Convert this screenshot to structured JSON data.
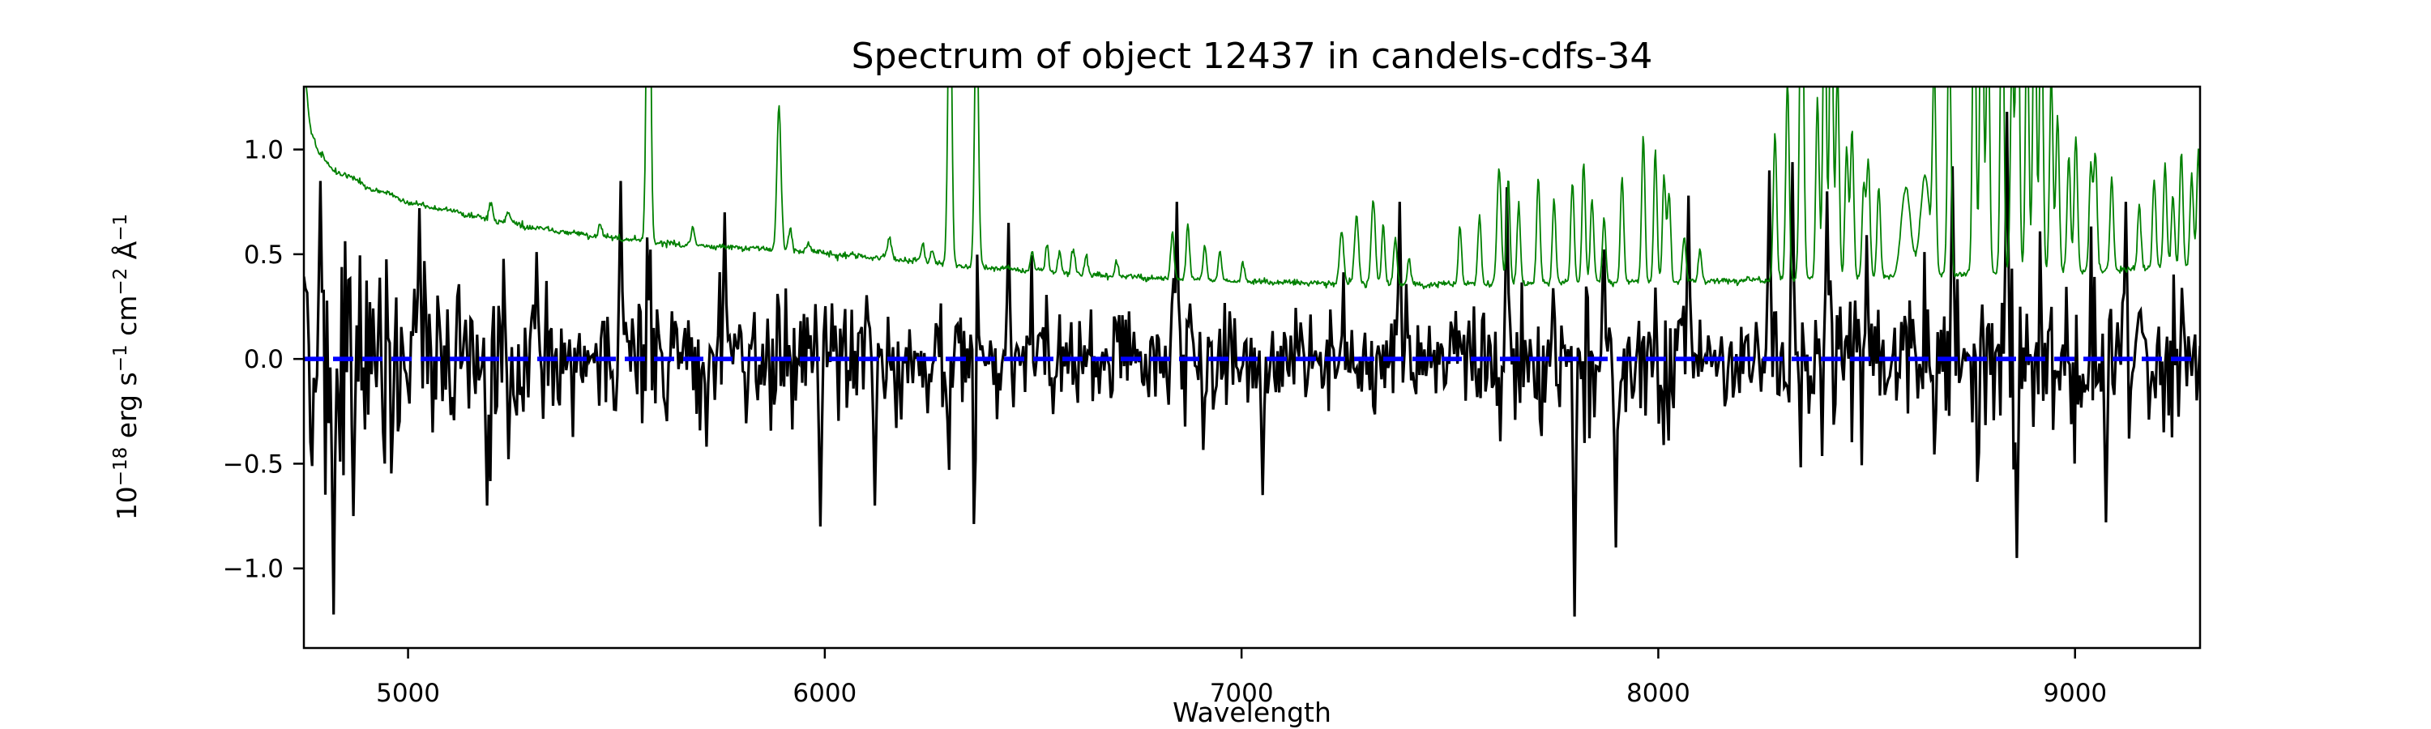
{
  "figure": {
    "title": "Spectrum of object 12437 in candels-cdfs-34",
    "xlabel": "Wavelength",
    "ylabel_plain": "10⁻¹⁸ erg s⁻¹ cm⁻² Å⁻¹",
    "ylabel_parts": [
      {
        "text": "10",
        "sup": false
      },
      {
        "text": "−18",
        "sup": true
      },
      {
        "text": " erg s",
        "sup": false
      },
      {
        "text": "−1",
        "sup": true
      },
      {
        "text": " cm",
        "sup": false
      },
      {
        "text": "−2",
        "sup": true
      },
      {
        "text": " Å",
        "sup": false
      },
      {
        "text": "−1",
        "sup": true
      }
    ],
    "background": "#ffffff",
    "axes_color": "#000000"
  },
  "chart_data": {
    "type": "line",
    "title": "Spectrum of object 12437 in candels-cdfs-34",
    "xlabel": "Wavelength",
    "ylabel": "10^-18 erg s^-1 cm^-2 A^-1",
    "xlim": [
      4750,
      9300
    ],
    "ylim": [
      -1.38,
      1.3
    ],
    "xticks": [
      5000,
      6000,
      7000,
      8000,
      9000
    ],
    "yticks": [
      -1.0,
      -0.5,
      0.0,
      0.5,
      1.0
    ],
    "grid": false,
    "legend": false,
    "series": [
      {
        "name": "observed-flux",
        "description": "Noisy extracted object spectrum oscillating about zero; noise amplitude tracks the sky brightness. Values in 1e-18 erg/s/cm2/A.",
        "color": "#000000",
        "linewidth": 3.2,
        "n_points": 1150,
        "seed": 12437,
        "noise_sigma_base": 0.095,
        "noise_sky_coupling": 0.3,
        "noise_sigma_min": 0.09,
        "noise_sigma_max": 0.34,
        "features": [
          [
            4790,
            0.85
          ],
          [
            4822,
            -1.22
          ],
          [
            4870,
            -0.75
          ],
          [
            5027,
            0.72
          ],
          [
            5190,
            -0.7
          ],
          [
            5509,
            0.85
          ],
          [
            5760,
            0.7
          ],
          [
            5990,
            -0.8
          ],
          [
            6120,
            -0.7
          ],
          [
            6440,
            0.65
          ],
          [
            6846,
            0.75
          ],
          [
            7050,
            -0.65
          ],
          [
            7378,
            0.75
          ],
          [
            7638,
            0.82
          ],
          [
            7800,
            -1.23
          ],
          [
            7900,
            -0.9
          ],
          [
            8071,
            0.78
          ],
          [
            8265,
            0.9
          ],
          [
            8322,
            0.94
          ],
          [
            8404,
            0.8
          ],
          [
            8707,
            0.92
          ],
          [
            8836,
            1.18
          ],
          [
            8861,
            -0.95
          ],
          [
            9073,
            -0.78
          ],
          [
            9121,
            0.75
          ]
        ]
      },
      {
        "name": "sky-noise-spectrum",
        "description": "Green noise/sky spectrum: smooth continuum declining from ~1.4 at 4750A to ~0.35 at 7400A then slowly rising, plus airglow emission lines (several clipped at the axes top).",
        "color": "#008000",
        "linewidth": 1.8,
        "n_points": 2275,
        "seed": 77,
        "continuum_anchors": [
          [
            4750,
            1.42
          ],
          [
            4765,
            1.1
          ],
          [
            4785,
            0.98
          ],
          [
            4820,
            0.9
          ],
          [
            4900,
            0.82
          ],
          [
            5000,
            0.74
          ],
          [
            5100,
            0.7
          ],
          [
            5200,
            0.66
          ],
          [
            5300,
            0.62
          ],
          [
            5400,
            0.595
          ],
          [
            5500,
            0.57
          ],
          [
            5600,
            0.55
          ],
          [
            5700,
            0.535
          ],
          [
            5800,
            0.525
          ],
          [
            5900,
            0.515
          ],
          [
            6000,
            0.5
          ],
          [
            6100,
            0.48
          ],
          [
            6200,
            0.465
          ],
          [
            6300,
            0.445
          ],
          [
            6400,
            0.43
          ],
          [
            6500,
            0.415
          ],
          [
            6600,
            0.4
          ],
          [
            6700,
            0.39
          ],
          [
            6800,
            0.38
          ],
          [
            6900,
            0.375
          ],
          [
            7000,
            0.365
          ],
          [
            7100,
            0.36
          ],
          [
            7200,
            0.355
          ],
          [
            7300,
            0.35
          ],
          [
            7400,
            0.35
          ],
          [
            7500,
            0.35
          ],
          [
            7600,
            0.355
          ],
          [
            7700,
            0.355
          ],
          [
            7800,
            0.36
          ],
          [
            7900,
            0.36
          ],
          [
            8000,
            0.36
          ],
          [
            8100,
            0.365
          ],
          [
            8200,
            0.37
          ],
          [
            8300,
            0.375
          ],
          [
            8400,
            0.38
          ],
          [
            8500,
            0.385
          ],
          [
            8600,
            0.39
          ],
          [
            8700,
            0.4
          ],
          [
            8800,
            0.405
          ],
          [
            8900,
            0.41
          ],
          [
            9000,
            0.415
          ],
          [
            9100,
            0.42
          ],
          [
            9200,
            0.425
          ],
          [
            9300,
            0.43
          ]
        ],
        "emission_lines": [
          [
            5199,
            0.09,
            4
          ],
          [
            5240,
            0.05,
            4
          ],
          [
            5461,
            0.06,
            4
          ],
          [
            5577,
            2.2,
            4.5
          ],
          [
            5683,
            0.08,
            4
          ],
          [
            5890,
            0.68,
            5
          ],
          [
            5917,
            0.1,
            4
          ],
          [
            5960,
            0.05,
            4
          ],
          [
            6155,
            0.1,
            5
          ],
          [
            6235,
            0.08,
            4
          ],
          [
            6257,
            0.07,
            4
          ],
          [
            6300,
            1.5,
            4.5
          ],
          [
            6364,
            1.3,
            4.5
          ],
          [
            6498,
            0.09,
            4
          ],
          [
            6533,
            0.13,
            4
          ],
          [
            6563,
            0.1,
            4
          ],
          [
            6596,
            0.12,
            4
          ],
          [
            6627,
            0.1,
            4
          ],
          [
            6700,
            0.07,
            4
          ],
          [
            6834,
            0.22,
            4
          ],
          [
            6871,
            0.26,
            4
          ],
          [
            6912,
            0.16,
            4
          ],
          [
            6948,
            0.13,
            4
          ],
          [
            7003,
            0.1,
            4
          ],
          [
            7240,
            0.26,
            5
          ],
          [
            7276,
            0.32,
            5
          ],
          [
            7316,
            0.4,
            5
          ],
          [
            7340,
            0.28,
            4
          ],
          [
            7369,
            0.22,
            4
          ],
          [
            7402,
            0.12,
            4
          ],
          [
            7524,
            0.28,
            4
          ],
          [
            7571,
            0.32,
            4
          ],
          [
            7618,
            0.55,
            5
          ],
          [
            7640,
            0.5,
            4
          ],
          [
            7665,
            0.38,
            4
          ],
          [
            7712,
            0.5,
            4
          ],
          [
            7750,
            0.4,
            4
          ],
          [
            7794,
            0.48,
            4
          ],
          [
            7821,
            0.58,
            4
          ],
          [
            7841,
            0.4,
            4
          ],
          [
            7870,
            0.3,
            4
          ],
          [
            7913,
            0.5,
            4
          ],
          [
            7964,
            0.7,
            4
          ],
          [
            7993,
            0.62,
            4
          ],
          [
            8014,
            0.5,
            4
          ],
          [
            8026,
            0.42,
            4
          ],
          [
            8062,
            0.22,
            4
          ],
          [
            8100,
            0.15,
            4
          ],
          [
            8280,
            0.7,
            4
          ],
          [
            8310,
            0.95,
            4
          ],
          [
            8344,
            1.8,
            4.5
          ],
          [
            8382,
            0.85,
            4
          ],
          [
            8399,
            1.5,
            4
          ],
          [
            8415,
            1.6,
            4
          ],
          [
            8430,
            1.0,
            4
          ],
          [
            8452,
            0.62,
            4
          ],
          [
            8465,
            0.7,
            4
          ],
          [
            8493,
            0.45,
            4
          ],
          [
            8504,
            0.55,
            4
          ],
          [
            8529,
            0.42,
            4
          ],
          [
            8594,
            0.42,
            11
          ],
          [
            8640,
            0.48,
            11
          ],
          [
            8662,
            0.95,
            4
          ],
          [
            8698,
            1.25,
            4
          ],
          [
            8758,
            1.55,
            4
          ],
          [
            8776,
            1.85,
            4
          ],
          [
            8791,
            1.3,
            4
          ],
          [
            8825,
            1.65,
            4
          ],
          [
            8849,
            1.05,
            4
          ],
          [
            8862,
            1.95,
            4
          ],
          [
            8885,
            1.25,
            4
          ],
          [
            8903,
            1.55,
            4
          ],
          [
            8919,
            1.45,
            4
          ],
          [
            8943,
            0.95,
            4
          ],
          [
            8958,
            0.75,
            4
          ],
          [
            8985,
            0.55,
            4
          ],
          [
            9002,
            0.65,
            4
          ],
          [
            9038,
            0.5,
            4
          ],
          [
            9049,
            0.55,
            4
          ],
          [
            9088,
            0.45,
            4
          ],
          [
            9154,
            0.32,
            4
          ],
          [
            9190,
            0.42,
            4
          ],
          [
            9216,
            0.5,
            4
          ],
          [
            9235,
            0.35,
            4
          ],
          [
            9255,
            0.55,
            4
          ],
          [
            9280,
            0.45,
            4
          ],
          [
            9296,
            0.55,
            4
          ]
        ]
      },
      {
        "name": "zero-reference-line",
        "description": "Horizontal dashed blue line at flux = 0.",
        "color": "#0000ff",
        "linewidth": 5.5,
        "dash": [
          25,
          11
        ],
        "y": 0.0
      }
    ]
  }
}
